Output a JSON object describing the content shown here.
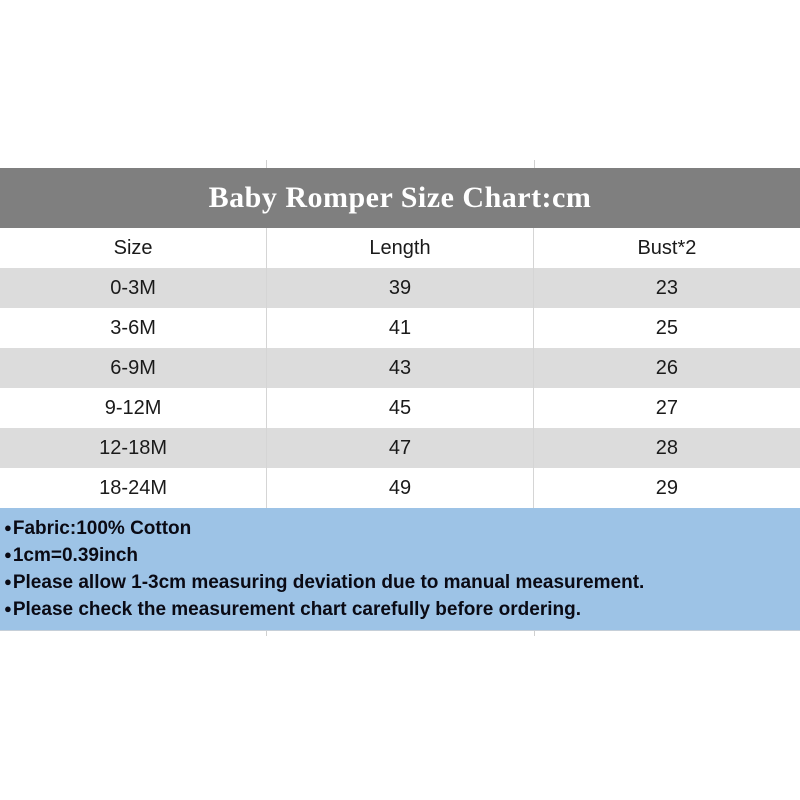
{
  "chart_data": {
    "type": "table",
    "title": "Baby Romper Size Chart:cm",
    "unit": "cm",
    "columns": [
      "Size",
      "Length",
      "Bust*2"
    ],
    "rows": [
      [
        "0-3M",
        "39",
        "23"
      ],
      [
        "3-6M",
        "41",
        "25"
      ],
      [
        "6-9M",
        "43",
        "26"
      ],
      [
        "9-12M",
        "45",
        "27"
      ],
      [
        "12-18M",
        "47",
        "28"
      ],
      [
        "18-24M",
        "49",
        "29"
      ]
    ]
  },
  "notes": {
    "bullet": "●",
    "items": [
      "Fabric:100% Cotton",
      "1cm=0.39inch",
      "Please allow 1-3cm measuring deviation due to manual measurement.",
      "Please check the measurement chart carefully before ordering."
    ]
  },
  "colors": {
    "title_band_bg": "#7f7f7f",
    "title_text": "#ffffff",
    "stripe_row_bg": "#dcdcdc",
    "plain_row_bg": "#ffffff",
    "notes_bg": "#9dc3e6",
    "notes_text": "#0a0a14",
    "table_text": "#1a1a1a",
    "divider": "#d5d5d5"
  }
}
